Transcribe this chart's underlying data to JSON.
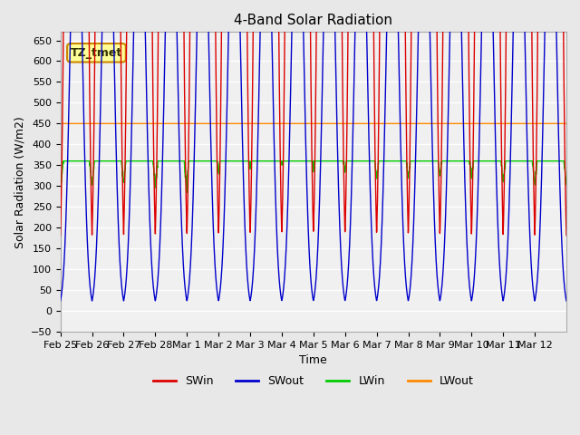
{
  "title": "4-Band Solar Radiation",
  "xlabel": "Time",
  "ylabel": "Solar Radiation (W/m2)",
  "ylim": [
    -50,
    670
  ],
  "annotation_text": "TZ_tmet",
  "annotation_bg": "#FFFF99",
  "annotation_border": "#CC8800",
  "bg_color": "#E8E8E8",
  "plot_bg": "#F0F0F0",
  "grid_color": "white",
  "colors": {
    "SWin": "#DD0000",
    "SWout": "#0000CC",
    "LWin": "#00CC00",
    "LWout": "#FF8800"
  },
  "legend_labels": [
    "SWin",
    "SWout",
    "LWin",
    "LWout"
  ],
  "x_tick_labels": [
    "Feb 25",
    "Feb 26",
    "Feb 27",
    "Feb 28",
    "Mar 1",
    "Mar 2",
    "Mar 3",
    "Mar 4",
    "Mar 5",
    "Mar 6",
    "Mar 7",
    "Mar 8",
    "Mar 9",
    "Mar 10",
    "Mar 11",
    "Mar 12"
  ],
  "n_days": 16,
  "points_per_day": 144
}
